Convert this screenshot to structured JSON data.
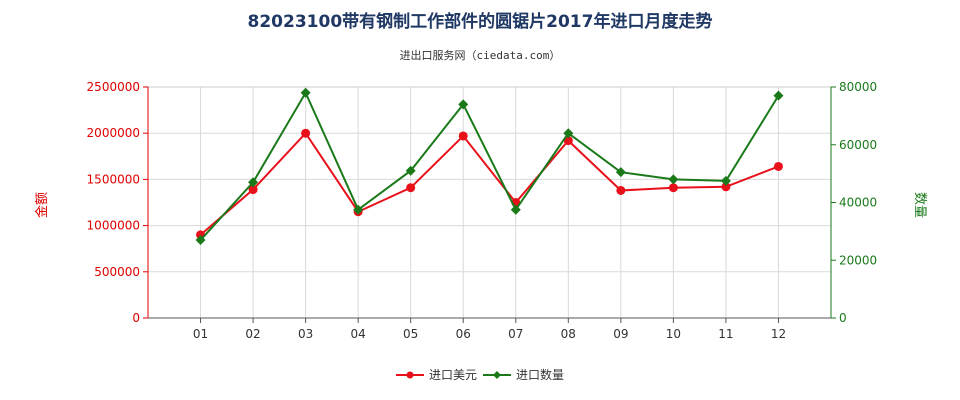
{
  "chart_data": {
    "type": "line",
    "title": "82023100带有钢制工作部件的圆锯片2017年进口月度走势",
    "subtitle": "进出口服务网（ciedata.com）",
    "categories": [
      "01",
      "02",
      "03",
      "04",
      "05",
      "06",
      "07",
      "08",
      "09",
      "10",
      "11",
      "12"
    ],
    "y_left": {
      "label": "金额",
      "ticks": [
        0,
        500000,
        1000000,
        1500000,
        2000000,
        2500000
      ],
      "ylim": [
        0,
        2500000
      ],
      "color": "#e00000"
    },
    "y_right": {
      "label": "数量",
      "ticks": [
        0,
        20000,
        40000,
        60000,
        80000
      ],
      "ylim": [
        0,
        80000
      ],
      "color": "#1a7a1a"
    },
    "series": [
      {
        "name": "进口美元",
        "axis": "left",
        "color": "#e8101a",
        "marker": "circle",
        "values": [
          900000,
          1390000,
          2000000,
          1150000,
          1410000,
          1970000,
          1250000,
          1920000,
          1380000,
          1410000,
          1420000,
          1640000
        ]
      },
      {
        "name": "进口数量",
        "axis": "right",
        "color": "#1a7a1a",
        "marker": "diamond",
        "values": [
          27000,
          47000,
          78000,
          37500,
          51000,
          74000,
          37500,
          64000,
          50500,
          48000,
          47500,
          77000
        ]
      }
    ],
    "grid": true,
    "legend": "bottom-center"
  }
}
